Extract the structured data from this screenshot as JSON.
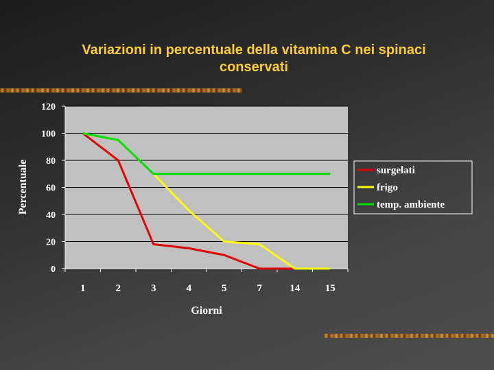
{
  "slide": {
    "title_line1": "Variazioni in percentuale della vitamina C nei spinaci",
    "title_line2": "conservati"
  },
  "colors": {
    "title": "#ffcc33",
    "text": "#ffffff",
    "plot_bg": "#c0c0c0"
  },
  "chart_data": {
    "type": "line",
    "title": "Variazioni in percentuale della vitamina C nei spinaci conservati",
    "xlabel": "Giorni",
    "ylabel": "Percentuale",
    "categories": [
      "1",
      "2",
      "3",
      "4",
      "5",
      "7",
      "14",
      "15"
    ],
    "ylim": [
      0,
      120
    ],
    "yticks": [
      0,
      20,
      40,
      60,
      80,
      100,
      120
    ],
    "grid": true,
    "legend_position": "right",
    "series": [
      {
        "name": "surgelati",
        "color": "#e00000",
        "values": [
          100,
          80,
          18,
          15,
          10,
          0,
          0,
          null
        ]
      },
      {
        "name": "frigo",
        "color": "#ffff00",
        "values": [
          100,
          95,
          70,
          43,
          20,
          18,
          0,
          0
        ]
      },
      {
        "name": "temp. ambiente",
        "color": "#00dd00",
        "values": [
          100,
          95,
          70,
          70,
          70,
          70,
          70,
          70
        ]
      }
    ]
  }
}
